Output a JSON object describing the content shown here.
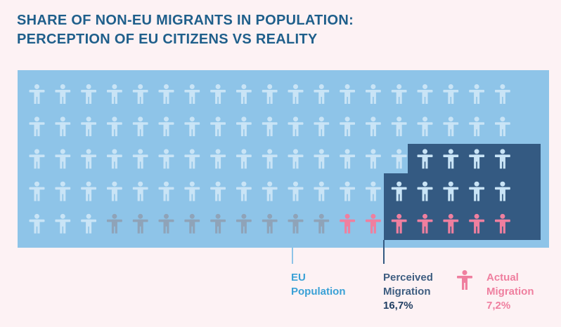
{
  "title": {
    "line1": "SHARE OF NON-EU MIGRANTS IN POPULATION:",
    "line2": "PERCEPTION OF EU CITIZENS VS REALITY"
  },
  "legend": {
    "eu": {
      "line1": "EU",
      "line2": "Population"
    },
    "perceived": {
      "line1": "Perceived",
      "line2": "Migration",
      "value": "16,7%"
    },
    "actual": {
      "line1": "Actual",
      "line2": "Migration",
      "value": "7,2%"
    }
  },
  "colors": {
    "background": "#fdf2f4",
    "population_panel": "#8ec4e8",
    "population_figure": "#c9e4f6",
    "perceived_panel": "#345a82",
    "perceived_figure": "#8fa3b8",
    "actual_figure": "#ef7f9f",
    "title": "#1f5f8b"
  },
  "chart_data": {
    "type": "pictogram",
    "grid": {
      "rows": 5,
      "columns": 19,
      "total_figures": 95
    },
    "series": [
      {
        "name": "EU Population",
        "value": 100
      },
      {
        "name": "Perceived Migration",
        "value": 16.7,
        "label": "16,7%",
        "figures": 16
      },
      {
        "name": "Actual Migration",
        "value": 7.2,
        "label": "7,2%",
        "figures": 7
      }
    ]
  }
}
